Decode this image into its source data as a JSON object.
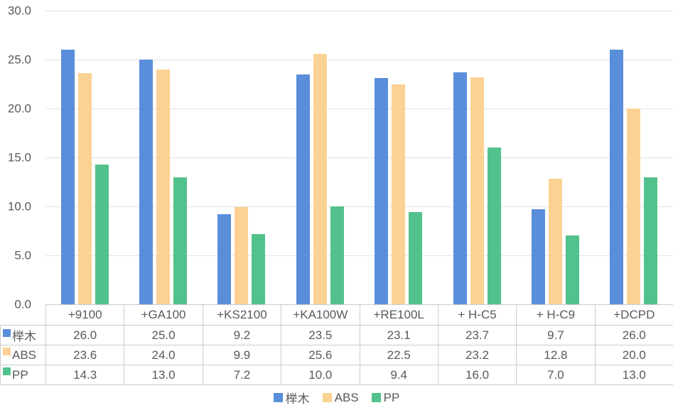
{
  "chart_data": {
    "type": "bar",
    "title": "",
    "xlabel": "",
    "ylabel": "",
    "categories": [
      "+9100",
      "+GA100",
      "+KS2100",
      "+KA100W",
      "+RE100L",
      "+ H-C5",
      "+ H-C9",
      "+DCPD"
    ],
    "series": [
      {
        "name": "榉木",
        "color": "#5a8edb",
        "values": [
          26.0,
          25.0,
          9.2,
          23.5,
          23.1,
          23.7,
          9.7,
          26.0
        ]
      },
      {
        "name": "ABS",
        "color": "#fbd294",
        "values": [
          23.6,
          24.0,
          9.9,
          25.6,
          22.5,
          23.2,
          12.8,
          20.0
        ]
      },
      {
        "name": "PP",
        "color": "#53c18b",
        "values": [
          14.3,
          13.0,
          7.2,
          10.0,
          9.4,
          16.0,
          7.0,
          13.0
        ]
      }
    ],
    "ylim": [
      0,
      30
    ],
    "ytick_step": 5,
    "ytick_labels": [
      "0.0",
      "5.0",
      "10.0",
      "15.0",
      "20.0",
      "25.0",
      "30.0"
    ],
    "grid": true,
    "legend_position": "bottom",
    "data_table_shown": true
  },
  "colors": {
    "gridline": "#e2e2e2",
    "table_border": "#cccccc",
    "text": "#595959",
    "background": "#ffffff"
  }
}
